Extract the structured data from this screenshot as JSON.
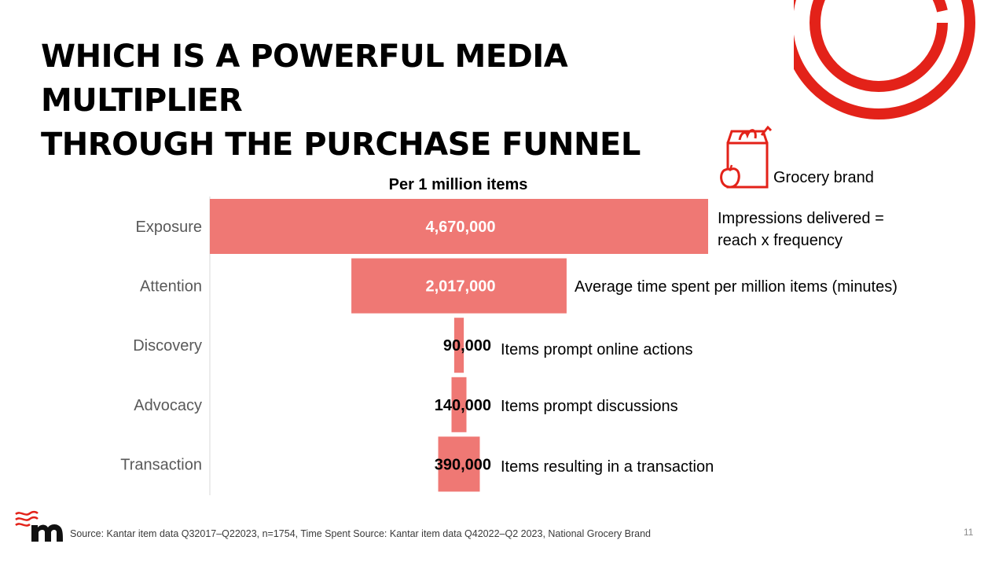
{
  "slide": {
    "title_line1": "WHICH IS A POWERFUL MEDIA MULTIPLIER",
    "title_line2": "THROUGH THE PURCHASE FUNNEL",
    "page_number": "11",
    "source": "Source: Kantar item data Q32017–Q22023, n=1754, Time Spent Source: Kantar item data Q42022–Q2 2023, National Grocery Brand"
  },
  "legend": {
    "icon": "grocery-bag-icon",
    "label": "Grocery brand"
  },
  "notes": {
    "exposure": "Impressions delivered = reach x frequency",
    "attention": "Average time spent per million items (minutes)",
    "discovery": "Items prompt online actions",
    "advocacy": "Items prompt discussions",
    "transaction": "Items resulting in a transaction"
  },
  "colors": {
    "bar": "#ef7874",
    "accent_red": "#e32219",
    "axis": "#d9d9d9"
  },
  "chart_data": {
    "type": "bar",
    "orientation": "horizontal-centered-funnel",
    "title": "Per 1 million items",
    "categories": [
      "Exposure",
      "Attention",
      "Discovery",
      "Advocacy",
      "Transaction"
    ],
    "values": [
      4670000,
      2017000,
      90000,
      140000,
      390000
    ],
    "value_labels": [
      "4,670,000",
      "2,017,000",
      "90,000",
      "140,000",
      "390,000"
    ],
    "series": [
      {
        "values": [
          4670000,
          2017000,
          90000,
          140000,
          390000
        ]
      }
    ]
  }
}
